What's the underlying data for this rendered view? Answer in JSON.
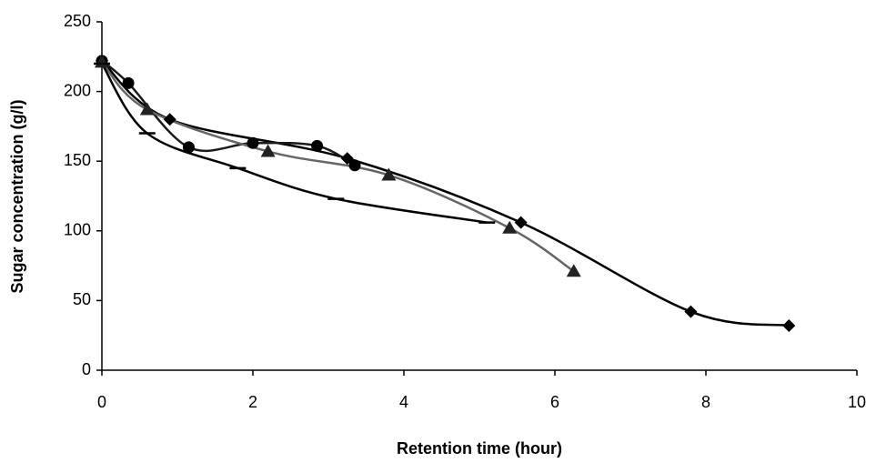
{
  "chart_data": {
    "type": "line",
    "x_label": "Retention time (hour)",
    "y_label": "Sugar concentration (g/l)",
    "xlim": [
      0,
      10
    ],
    "xticks": [
      0,
      2,
      4,
      6,
      8,
      10
    ],
    "ylim": [
      0,
      250
    ],
    "yticks": [
      0,
      50,
      100,
      150,
      200,
      250
    ],
    "grid": false,
    "series": [
      {
        "color": "#000000",
        "marker": "diamond",
        "x": [
          0,
          0.9,
          3.25,
          5.55,
          7.8,
          9.1
        ],
        "values": [
          222,
          180,
          152,
          106,
          42,
          32
        ]
      },
      {
        "color": "#1a1a1a",
        "marker": "circle",
        "x": [
          0,
          0.35,
          1.15,
          2.0,
          2.85,
          3.35
        ],
        "values": [
          222,
          206,
          160,
          163,
          161,
          147
        ]
      },
      {
        "color": "#666666",
        "marker": "triangle",
        "x": [
          0,
          0.6,
          2.2,
          3.8,
          5.4,
          6.25
        ],
        "values": [
          221,
          187,
          157,
          140,
          102,
          71
        ]
      },
      {
        "color": "#000000",
        "marker": "dash",
        "x": [
          0,
          0.6,
          1.8,
          3.1,
          5.1
        ],
        "values": [
          220,
          170,
          145,
          123,
          106
        ]
      }
    ]
  }
}
